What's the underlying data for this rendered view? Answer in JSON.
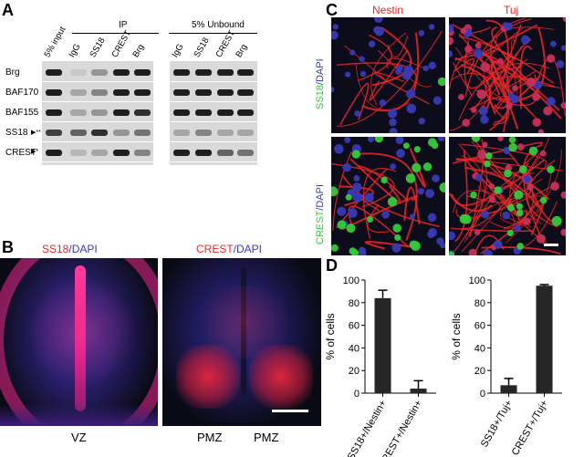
{
  "panels": {
    "a": {
      "letter": "A"
    },
    "b": {
      "letter": "B"
    },
    "c": {
      "letter": "C"
    },
    "d": {
      "letter": "D"
    }
  },
  "blot": {
    "group_ip": "IP",
    "group_unbound": "5% Unbound",
    "lanes": [
      "5% input",
      "IgG",
      "SS18",
      "CREST",
      "Brg",
      "IgG",
      "SS18",
      "CREST",
      "Brg"
    ],
    "rows": [
      "Brg",
      "BAF170",
      "BAF155",
      "SS18",
      "CREST"
    ],
    "markers": {
      "ss18": "▶**",
      "crest": "▶*"
    }
  },
  "sections": {
    "left_title_a": "SS18",
    "left_title_b": "/DAPI",
    "right_title_a": "CREST",
    "right_title_b": "/DAPI",
    "left_zone": "VZ",
    "right_zone_1": "PMZ",
    "right_zone_2": "PMZ"
  },
  "micrographs": {
    "col1": "Nestin",
    "col2": "Tuj",
    "row1_a": "SS18",
    "row1_b": "/DAPI",
    "row2_a": "CREST",
    "row2_b": "/DAPI"
  },
  "colors": {
    "red": "#e8282a",
    "blue": "#3a3ab4",
    "green": "#36c93a",
    "bar": "#262626"
  },
  "chart_data": [
    {
      "type": "bar",
      "ylabel": "% of cells",
      "ylim": [
        0,
        100
      ],
      "yticks": [
        0,
        20,
        40,
        60,
        80,
        100
      ],
      "categories": [
        "SS18+/Nestin+",
        "CREST+/Nestin+"
      ],
      "values": [
        84,
        4
      ],
      "errors": [
        7,
        7
      ]
    },
    {
      "type": "bar",
      "ylabel": "% of cells",
      "ylim": [
        0,
        100
      ],
      "yticks": [
        0,
        20,
        40,
        60,
        80,
        100
      ],
      "categories": [
        "SS18+/Tuj+",
        "CREST+/Tuj+"
      ],
      "values": [
        7,
        95
      ],
      "errors": [
        6,
        1
      ]
    }
  ]
}
